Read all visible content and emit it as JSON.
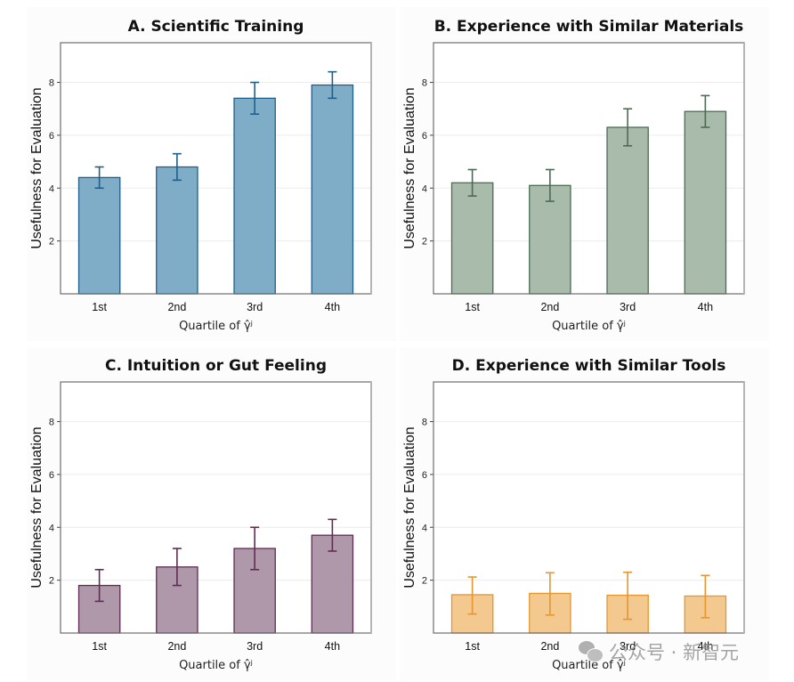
{
  "chart_data": [
    {
      "type": "bar",
      "title": "A. Scientific Training",
      "xlabel": "Quartile of γ̂ʲ",
      "ylabel": "Usefulness for Evaluation",
      "categories": [
        "1st",
        "2nd",
        "3rd",
        "4th"
      ],
      "values": [
        4.4,
        4.8,
        7.4,
        7.9
      ],
      "error_low": [
        4.0,
        4.3,
        6.8,
        7.4
      ],
      "error_high": [
        4.8,
        5.3,
        8.0,
        8.4
      ],
      "yticks": [
        2,
        4,
        6,
        8
      ],
      "ylim": [
        0,
        9.5
      ],
      "grid": true,
      "fill_color": "#7fadc8",
      "edge_color": "#1f5f8b"
    },
    {
      "type": "bar",
      "title": "B. Experience with Similar Materials",
      "xlabel": "Quartile of γ̂ʲ",
      "ylabel": "Usefulness for Evaluation",
      "categories": [
        "1st",
        "2nd",
        "3rd",
        "4th"
      ],
      "values": [
        4.2,
        4.1,
        6.3,
        6.9
      ],
      "error_low": [
        3.7,
        3.5,
        5.6,
        6.3
      ],
      "error_high": [
        4.7,
        4.7,
        7.0,
        7.5
      ],
      "yticks": [
        2,
        4,
        6,
        8
      ],
      "ylim": [
        0,
        9.5
      ],
      "grid": true,
      "fill_color": "#a9bbab",
      "edge_color": "#4d6b53"
    },
    {
      "type": "bar",
      "title": "C. Intuition or Gut Feeling",
      "xlabel": "Quartile of γ̂ʲ",
      "ylabel": "Usefulness for Evaluation",
      "categories": [
        "1st",
        "2nd",
        "3rd",
        "4th"
      ],
      "values": [
        1.8,
        2.5,
        3.2,
        3.7
      ],
      "error_low": [
        1.2,
        1.8,
        2.4,
        3.1
      ],
      "error_high": [
        2.4,
        3.2,
        4.0,
        4.3
      ],
      "yticks": [
        2,
        4,
        6,
        8
      ],
      "ylim": [
        0,
        9.5
      ],
      "grid": true,
      "fill_color": "#b098ab",
      "edge_color": "#5e2d52"
    },
    {
      "type": "bar",
      "title": "D. Experience with Similar Tools",
      "xlabel": "Quartile of γ̂ʲ",
      "ylabel": "Usefulness for Evaluation",
      "categories": [
        "1st",
        "2nd",
        "3rd",
        "4th"
      ],
      "values": [
        1.45,
        1.5,
        1.43,
        1.4
      ],
      "error_low": [
        0.72,
        0.68,
        0.52,
        0.58
      ],
      "error_high": [
        2.12,
        2.28,
        2.3,
        2.18
      ],
      "yticks": [
        2,
        4,
        6,
        8
      ],
      "ylim": [
        0,
        9.5
      ],
      "grid": true,
      "fill_color": "#f3c98f",
      "edge_color": "#e5962e"
    }
  ],
  "watermark": {
    "icon": "wechat-icon",
    "text": "公众号 · 新智元"
  }
}
